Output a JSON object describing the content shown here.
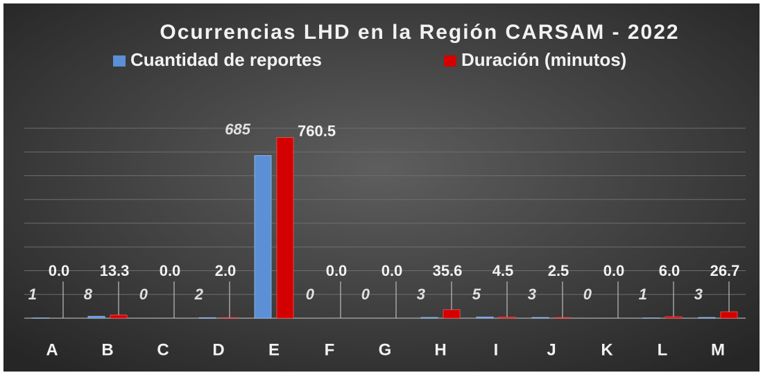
{
  "chart_data": {
    "type": "bar",
    "title": "Ocurrencias LHD en la Región CARSAM - 2022",
    "categories": [
      "A",
      "B",
      "C",
      "D",
      "E",
      "F",
      "G",
      "H",
      "I",
      "J",
      "K",
      "L",
      "M"
    ],
    "series": [
      {
        "name": "Cuantidad de reportes",
        "color": "#5b8fd6",
        "values": [
          1,
          8,
          0,
          2,
          685,
          0,
          0,
          3,
          5,
          3,
          0,
          1,
          3
        ]
      },
      {
        "name": "Duración (minutos)",
        "color": "#d40000",
        "values": [
          0,
          13.3,
          0,
          2,
          760.5,
          0,
          0,
          35.6,
          4.5,
          2.5,
          0,
          6,
          26.7
        ],
        "value_labels": [
          "0.0",
          "13.3",
          "0.0",
          "2.0",
          "760.5",
          "0.0",
          "0.0",
          "35.6",
          "4.5",
          "2.5",
          "0.0",
          "6.0",
          "26.7"
        ]
      }
    ],
    "ylim": [
      0,
      800
    ],
    "yticks": [
      0,
      100,
      200,
      300,
      400,
      500,
      600,
      700,
      800
    ],
    "grid": true
  }
}
